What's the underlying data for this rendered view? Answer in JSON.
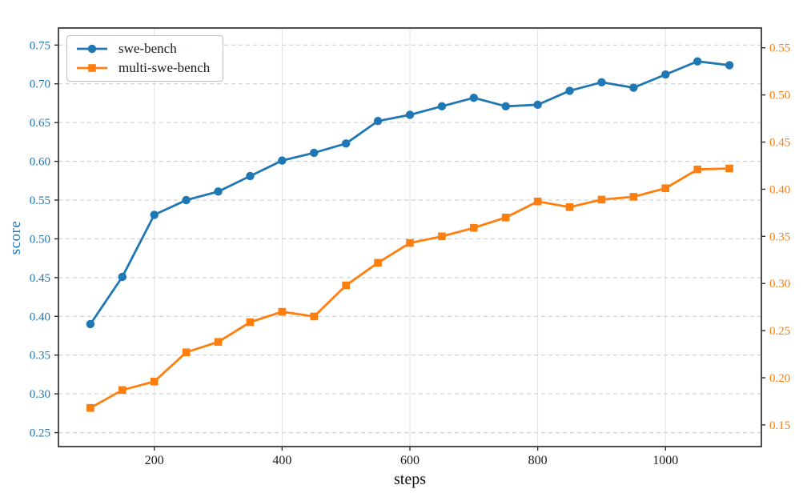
{
  "figure": {
    "background": "#ffffff",
    "spine_color": "#2f2f2f"
  },
  "chart_data": {
    "type": "line",
    "title": "",
    "xlabel": "steps",
    "ylabel": "score",
    "x": [
      100,
      150,
      200,
      250,
      300,
      350,
      400,
      450,
      500,
      550,
      600,
      650,
      700,
      750,
      800,
      850,
      900,
      950,
      1000,
      1050,
      1100
    ],
    "series": [
      {
        "name": "swe-bench",
        "axis": "left",
        "color": "#1f77b4",
        "marker": "circle",
        "values": [
          0.39,
          0.451,
          0.531,
          0.55,
          0.561,
          0.581,
          0.601,
          0.611,
          0.623,
          0.652,
          0.66,
          0.671,
          0.682,
          0.671,
          0.673,
          0.691,
          0.702,
          0.695,
          0.712,
          0.729,
          0.724
        ]
      },
      {
        "name": "multi-swe-bench",
        "axis": "right",
        "color": "#ff7f0e",
        "marker": "square",
        "values": [
          0.168,
          0.187,
          0.196,
          0.227,
          0.238,
          0.259,
          0.27,
          0.265,
          0.298,
          0.322,
          0.343,
          0.35,
          0.359,
          0.37,
          0.387,
          0.381,
          0.389,
          0.392,
          0.401,
          0.421,
          0.422
        ]
      }
    ],
    "xlim": [
      50,
      1150
    ],
    "x_ticks": [
      200,
      400,
      600,
      800,
      1000
    ],
    "left_axis": {
      "lim": [
        0.232,
        0.772
      ],
      "ticks": [
        0.25,
        0.3,
        0.35,
        0.4,
        0.45,
        0.5,
        0.55,
        0.6,
        0.65,
        0.7,
        0.75
      ],
      "color": "#1f77b4"
    },
    "right_axis": {
      "lim": [
        0.127,
        0.571
      ],
      "ticks": [
        0.15,
        0.2,
        0.25,
        0.3,
        0.35,
        0.4,
        0.45,
        0.5,
        0.55
      ],
      "color": "#ff7f0e"
    },
    "grid": {
      "horizontal": "dashed",
      "vertical": "solid",
      "h_color": "#c9c9c9",
      "v_color": "#e3e3e3"
    },
    "legend": {
      "position": "upper-left",
      "entries": [
        "swe-bench",
        "multi-swe-bench"
      ]
    }
  }
}
